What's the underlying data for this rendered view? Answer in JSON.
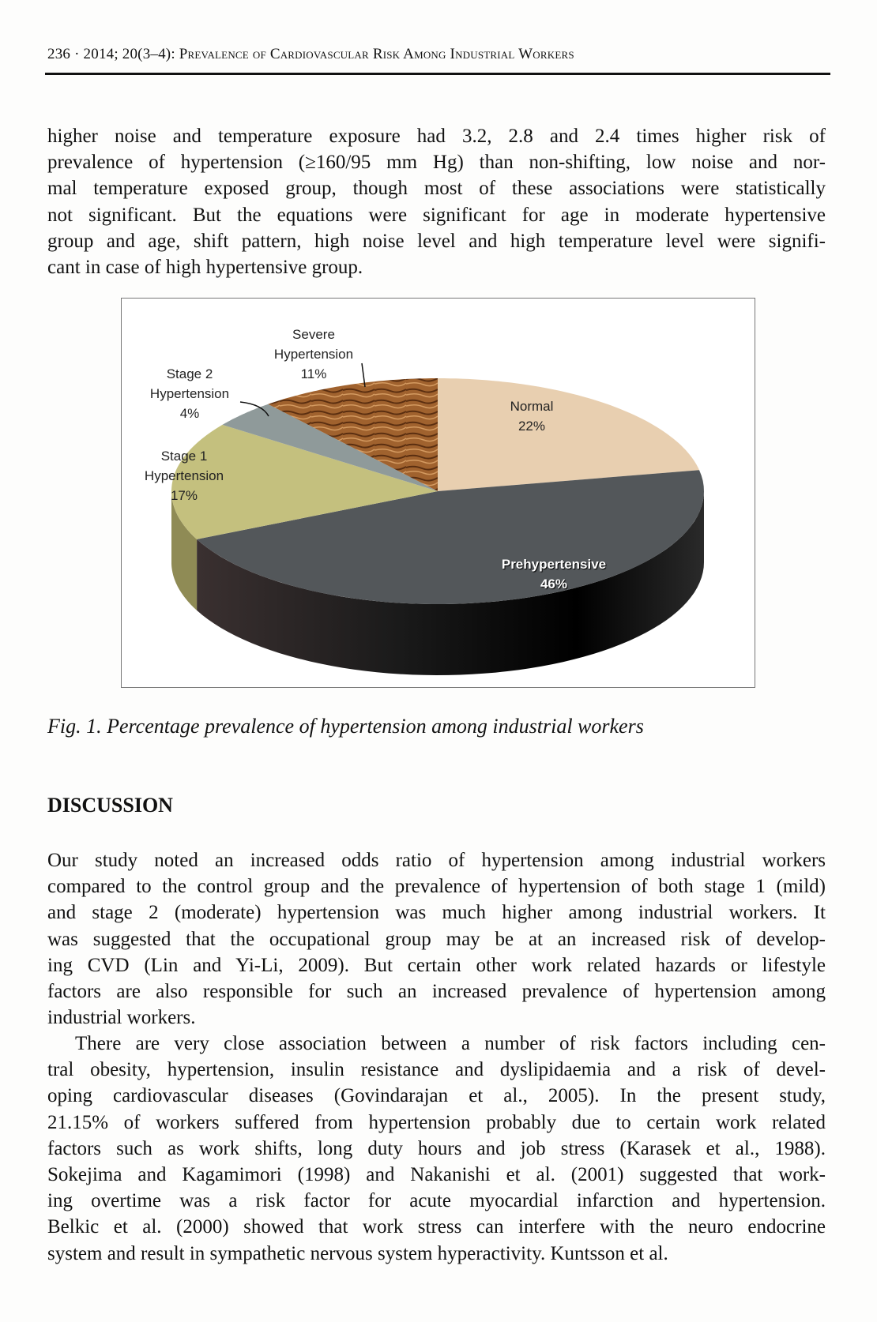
{
  "header": {
    "page": "236",
    "issue": "2014; 20(3–4):",
    "running_title": "Prevalence of Cardiovascular Risk Among Industrial Workers"
  },
  "intro_paragraph": [
    "higher noise and temperature exposure had 3.2, 2.8 and 2.4 times higher risk of",
    "prevalence of hypertension (≥160/95 mm Hg) than non-shifting, low noise and nor-",
    "mal temperature exposed group, though most of these associations were statistically",
    "not significant. But the equations were significant for age in moderate hypertensive",
    "group and age, shift pattern, high noise level and high temperature level were signifi-",
    "cant in case of high hypertensive group."
  ],
  "chart_data": {
    "type": "pie",
    "style": "3d",
    "start": "12 o'clock, clockwise",
    "slices": [
      {
        "name": "Normal",
        "label": "Normal",
        "pct_label": "22%",
        "value": 22,
        "color": "#e8cfb0"
      },
      {
        "name": "Prehypertensive",
        "label": "Prehypertensive",
        "pct_label": "46%",
        "value": 46,
        "color": "#53575a"
      },
      {
        "name": "Stage 1 Hypertension",
        "label": [
          "Stage 1",
          "Hypertension"
        ],
        "pct_label": "17%",
        "value": 17,
        "color": "#c4c07e"
      },
      {
        "name": "Stage 2 Hypertension",
        "label": [
          "Stage 2",
          "Hypertension"
        ],
        "pct_label": "4%",
        "value": 4,
        "color": "#8f9a9a"
      },
      {
        "name": "Severe Hypertension",
        "label": [
          "Severe",
          "Hypertension"
        ],
        "pct_label": "11%",
        "value": 11,
        "color": "#9a5a2a"
      }
    ]
  },
  "caption": "Fig. 1. Percentage prevalence of hypertension among industrial workers",
  "discussion": {
    "heading": "DISCUSSION",
    "paragraph1": [
      "Our study noted an increased odds ratio of hypertension among industrial workers",
      "compared to the control group and the prevalence of hypertension of both stage 1 (mild)",
      "and stage 2 (moderate) hypertension was much higher among industrial workers. It",
      "was suggested that the occupational group may be at an increased risk of develop-",
      "ing CVD (Lin and Yi-Li, 2009). But certain other work related hazards or lifestyle",
      "factors are also responsible for such an increased prevalence of hypertension among",
      "industrial workers."
    ],
    "paragraph2": [
      "There are very close association between a number of risk factors including cen-",
      "tral obesity, hypertension, insulin resistance and dyslipidaemia and a risk of devel-",
      "oping cardiovascular diseases (Govindarajan et al., 2005). In the present study,",
      "21.15% of workers suffered from hypertension probably due to certain work related",
      "factors such as work shifts, long duty hours and job stress (Karasek et al., 1988).",
      "Sokejima and Kagamimori (1998) and Nakanishi et al. (2001) suggested that work-",
      "ing overtime was a risk factor for acute myocardial infarction and hypertension.",
      "Belkic et al. (2000) showed that work stress can interfere with the neuro endocrine",
      "system and result in sympathetic nervous system hyperactivity. Kuntsson et al."
    ]
  }
}
